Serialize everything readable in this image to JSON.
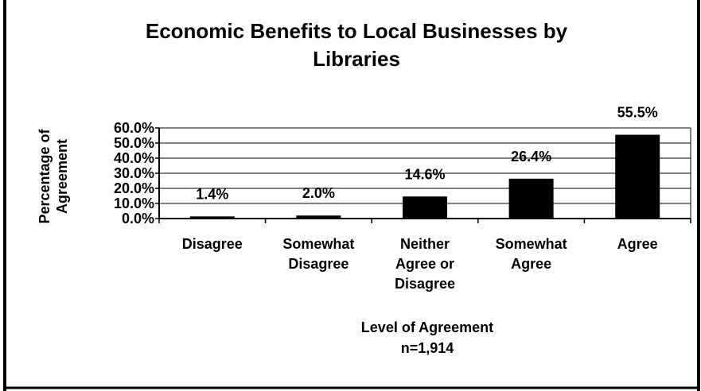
{
  "chart_data": {
    "type": "bar",
    "title": "Economic Benefits to Local Businesses by Libraries",
    "title_lines": [
      "Economic Benefits to Local Businesses by",
      "Libraries"
    ],
    "xlabel": "Level of Agreement",
    "subtitle_note": "n=1,914",
    "ylabel": "Percentage of Agreement",
    "ylabel_lines": [
      "Percentage of",
      "Agreement"
    ],
    "categories": [
      "Disagree",
      "Somewhat Disagree",
      "Neither Agree or Disagree",
      "Somewhat Agree",
      "Agree"
    ],
    "category_lines": [
      [
        "Disagree"
      ],
      [
        "Somewhat",
        "Disagree"
      ],
      [
        "Neither",
        "Agree or",
        "Disagree"
      ],
      [
        "Somewhat",
        "Agree"
      ],
      [
        "Agree"
      ]
    ],
    "values": [
      1.4,
      2.0,
      14.6,
      26.4,
      55.5
    ],
    "data_labels": [
      "1.4%",
      "2.0%",
      "14.6%",
      "26.4%",
      "55.5%"
    ],
    "yticks": [
      "0.0%",
      "10.0%",
      "20.0%",
      "30.0%",
      "40.0%",
      "50.0%",
      "60.0%"
    ],
    "ylim": [
      0,
      60
    ],
    "grid": true,
    "legend": "none",
    "colors": {
      "bar": "#000000",
      "background": "#ffffff",
      "frame": "#000000"
    }
  }
}
